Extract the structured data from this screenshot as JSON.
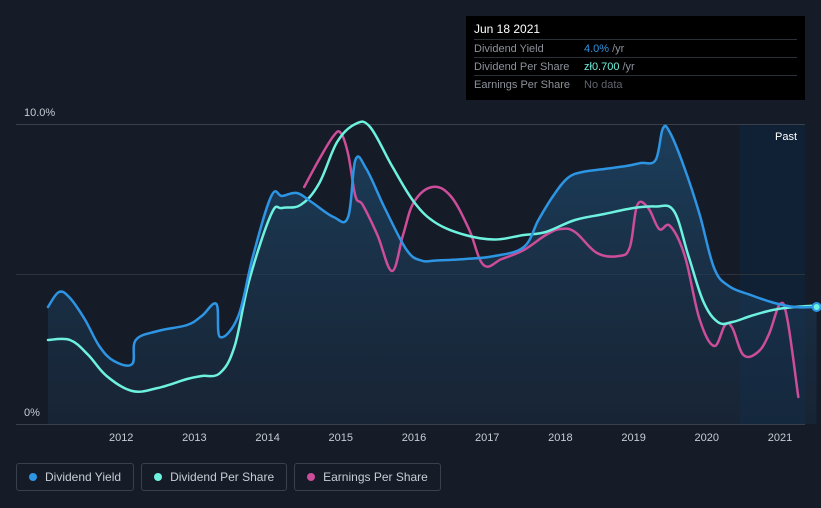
{
  "tooltip": {
    "date": "Jun 18 2021",
    "rows": [
      {
        "label": "Dividend Yield",
        "value": "4.0%",
        "unit": "/yr",
        "color": "#2d95e3"
      },
      {
        "label": "Dividend Per Share",
        "value": "zł0.700",
        "unit": "/yr",
        "color": "#6ef1de"
      },
      {
        "label": "Earnings Per Share",
        "value": "No data",
        "unit": "",
        "color": "#5f646c"
      }
    ]
  },
  "past_label": "Past",
  "legend": [
    {
      "label": "Dividend Yield",
      "color": "#2d95e3"
    },
    {
      "label": "Dividend Per Share",
      "color": "#6ef1de"
    },
    {
      "label": "Earnings Per Share",
      "color": "#cc4d99"
    }
  ],
  "chart_data": {
    "type": "line",
    "y_tick_labels": [
      "10.0%",
      "0%"
    ],
    "x_tick_labels": [
      "2012",
      "2013",
      "2014",
      "2015",
      "2016",
      "2017",
      "2018",
      "2019",
      "2020",
      "2021"
    ],
    "x_range": [
      2011.0,
      2021.5
    ],
    "y_range": [
      0,
      10
    ],
    "past_region_start": 2020.45,
    "series": [
      {
        "name": "Dividend Yield",
        "color": "#2d95e3",
        "x": [
          2011.0,
          2011.15,
          2011.3,
          2011.5,
          2011.7,
          2011.9,
          2012.15,
          2012.2,
          2012.5,
          2012.9,
          2013.1,
          2013.3,
          2013.35,
          2013.6,
          2013.8,
          2014.05,
          2014.2,
          2014.4,
          2014.6,
          2014.9,
          2015.1,
          2015.2,
          2015.35,
          2015.6,
          2015.9,
          2016.1,
          2016.3,
          2016.7,
          2017.1,
          2017.5,
          2017.7,
          2017.9,
          2018.1,
          2018.3,
          2018.6,
          2018.9,
          2019.1,
          2019.3,
          2019.4,
          2019.5,
          2019.7,
          2019.9,
          2020.1,
          2020.3,
          2020.6,
          2020.9,
          2021.2,
          2021.5
        ],
        "y": [
          3.9,
          4.4,
          4.2,
          3.5,
          2.6,
          2.1,
          2.0,
          2.8,
          3.1,
          3.3,
          3.6,
          4.0,
          2.9,
          3.6,
          5.6,
          7.6,
          7.6,
          7.7,
          7.4,
          6.9,
          6.9,
          8.8,
          8.5,
          7.2,
          5.8,
          5.45,
          5.45,
          5.5,
          5.6,
          5.9,
          6.8,
          7.6,
          8.2,
          8.4,
          8.5,
          8.6,
          8.7,
          8.8,
          9.85,
          9.7,
          8.5,
          7.0,
          5.2,
          4.6,
          4.3,
          4.05,
          3.9,
          3.9
        ]
      },
      {
        "name": "Dividend Per Share",
        "color": "#6ef1de",
        "x": [
          2011.0,
          2011.3,
          2011.55,
          2011.8,
          2012.15,
          2012.5,
          2012.9,
          2013.1,
          2013.35,
          2013.55,
          2013.75,
          2014.05,
          2014.2,
          2014.45,
          2014.7,
          2014.95,
          2015.2,
          2015.4,
          2015.7,
          2016.0,
          2016.3,
          2016.7,
          2017.1,
          2017.5,
          2017.8,
          2018.2,
          2018.6,
          2019.0,
          2019.3,
          2019.55,
          2019.75,
          2019.95,
          2020.15,
          2020.35,
          2020.6,
          2020.9,
          2021.2,
          2021.5
        ],
        "y": [
          2.8,
          2.8,
          2.3,
          1.6,
          1.1,
          1.2,
          1.5,
          1.6,
          1.7,
          2.6,
          4.8,
          7.0,
          7.2,
          7.3,
          8.0,
          9.4,
          10.0,
          9.9,
          8.6,
          7.4,
          6.7,
          6.3,
          6.15,
          6.3,
          6.4,
          6.8,
          7.0,
          7.2,
          7.25,
          7.1,
          5.6,
          4.1,
          3.4,
          3.4,
          3.6,
          3.8,
          3.9,
          3.95
        ]
      },
      {
        "name": "Earnings Per Share",
        "color": "#cc4d99",
        "x": [
          2014.5,
          2014.7,
          2014.9,
          2015.0,
          2015.1,
          2015.2,
          2015.3,
          2015.5,
          2015.7,
          2015.85,
          2016.0,
          2016.25,
          2016.5,
          2016.75,
          2016.95,
          2017.2,
          2017.5,
          2017.8,
          2018.0,
          2018.2,
          2018.5,
          2018.8,
          2018.95,
          2019.05,
          2019.2,
          2019.35,
          2019.5,
          2019.7,
          2019.9,
          2020.1,
          2020.25,
          2020.35,
          2020.5,
          2020.7,
          2020.85,
          2021.0,
          2021.1,
          2021.25
        ],
        "y": [
          7.9,
          8.8,
          9.6,
          9.7,
          9.0,
          7.6,
          7.3,
          6.3,
          5.1,
          6.3,
          7.4,
          7.9,
          7.6,
          6.5,
          5.3,
          5.5,
          5.8,
          6.3,
          6.5,
          6.4,
          5.7,
          5.6,
          5.9,
          7.3,
          7.2,
          6.5,
          6.6,
          5.6,
          3.5,
          2.6,
          3.3,
          3.2,
          2.3,
          2.4,
          3.0,
          4.0,
          3.5,
          0.9
        ]
      }
    ]
  }
}
